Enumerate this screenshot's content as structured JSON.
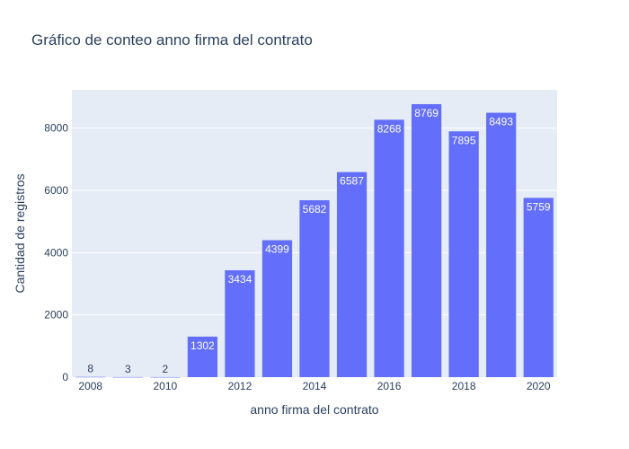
{
  "chart_data": {
    "type": "bar",
    "title": "Gráfico de conteo anno firma del contrato",
    "xlabel": "anno firma del contrato",
    "ylabel": "Cantidad de registros",
    "categories": [
      2008,
      2009,
      2010,
      2011,
      2012,
      2013,
      2014,
      2015,
      2016,
      2017,
      2018,
      2019,
      2020
    ],
    "values": [
      8,
      3,
      2,
      1302,
      3434,
      4399,
      5682,
      6587,
      8268,
      8769,
      7895,
      8493,
      5759
    ],
    "x_tick_labels": [
      "2008",
      "2010",
      "2012",
      "2014",
      "2016",
      "2018",
      "2020"
    ],
    "y_ticks": [
      0,
      2000,
      4000,
      6000,
      8000
    ],
    "ylim": [
      0,
      9230
    ],
    "grid": true,
    "bar_color": "#636efa",
    "plot_background": "#e5ecf6",
    "text_color": "#2a3f5f"
  }
}
